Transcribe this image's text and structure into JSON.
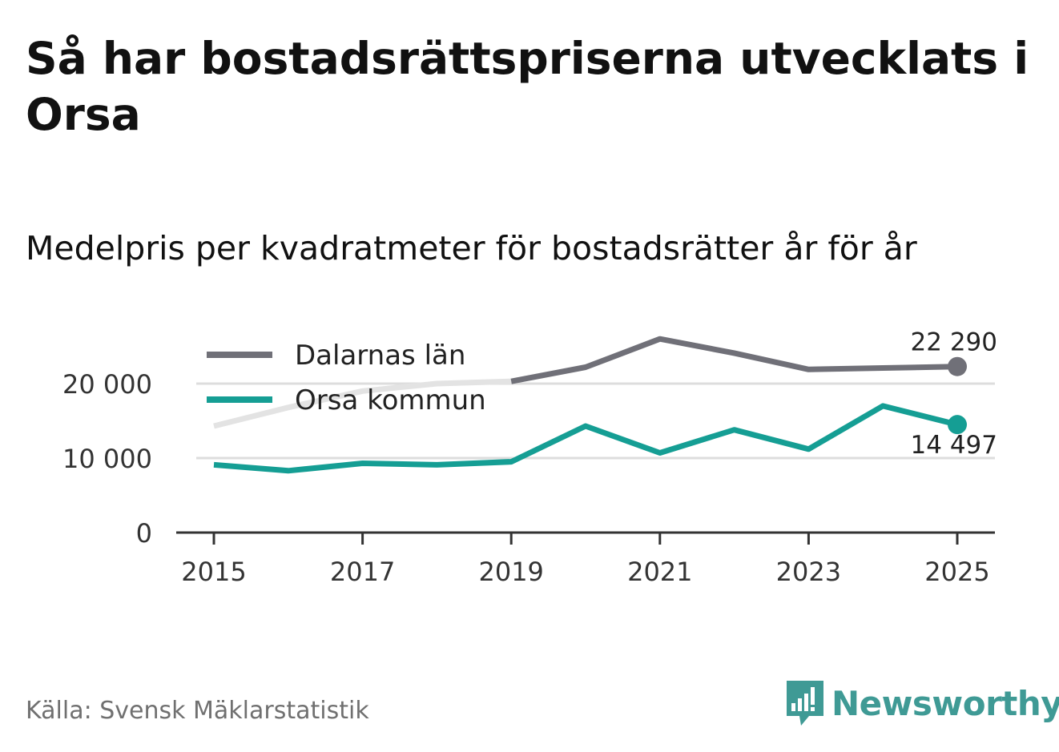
{
  "title": "Så har bostadsrättspriserna utvecklats i Orsa",
  "subtitle": "Medelpris per kvadratmeter för bostadsrätter år för år",
  "source": "Källa: Svensk Mäklarstatistik",
  "brand": {
    "name": "Newsworthy",
    "icon": "newsworthy-logo-icon",
    "color": "#3f9a95"
  },
  "chart_data": {
    "type": "line",
    "title": "Så har bostadsrättspriserna utvecklats i Orsa",
    "subtitle": "Medelpris per kvadratmeter för bostadsrätter år för år",
    "xlabel": "",
    "ylabel": "",
    "x": [
      2015,
      2016,
      2017,
      2018,
      2019,
      2020,
      2021,
      2022,
      2023,
      2024,
      2025
    ],
    "xticks": [
      "2015",
      "2017",
      "2019",
      "2021",
      "2023",
      "2025"
    ],
    "xtick_values": [
      2015,
      2017,
      2019,
      2021,
      2023,
      2025
    ],
    "yticks": [
      "0",
      "10 000",
      "20 000"
    ],
    "ytick_values": [
      0,
      10000,
      20000
    ],
    "xlim": [
      2014.75,
      2025.25
    ],
    "ylim": [
      0,
      26000
    ],
    "grid": true,
    "legend": "top-left",
    "series": [
      {
        "name": "Dalarnas län",
        "color": "#707078",
        "faded_color": "#e3e3e3",
        "faded_until": 2019,
        "values": [
          14300,
          16800,
          19000,
          20000,
          20300,
          22200,
          26000,
          24100,
          21900,
          22100,
          22290
        ],
        "end_label": "22 290"
      },
      {
        "name": "Orsa kommun",
        "color": "#159e94",
        "values": [
          9100,
          8300,
          9300,
          9100,
          9500,
          14300,
          10700,
          13800,
          11200,
          17000,
          14497
        ],
        "end_label": "14 497"
      }
    ]
  }
}
